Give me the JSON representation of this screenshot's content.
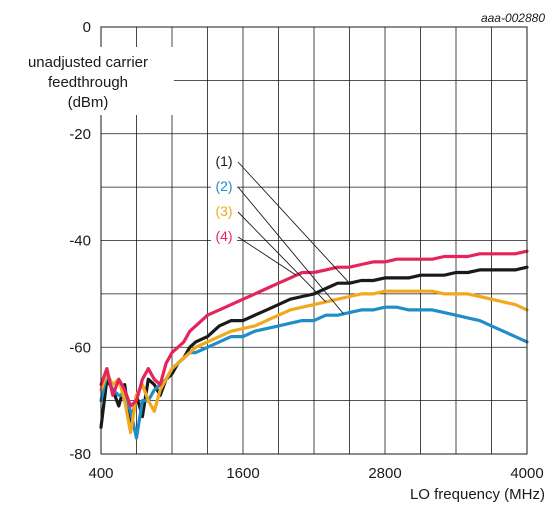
{
  "chart_data": {
    "type": "line",
    "figure_id": "aaa-002880",
    "ylabel_lines": [
      "unadjusted carrier",
      "feedthrough",
      "(dBm)"
    ],
    "xlabel": "LO frequency (MHz)",
    "xlim": [
      400,
      4000
    ],
    "ylim": [
      -80,
      0
    ],
    "x_ticks": [
      400,
      1600,
      2800,
      4000
    ],
    "y_ticks": [
      0,
      -20,
      -40,
      -60,
      -80
    ],
    "grid": true,
    "series": [
      {
        "name": "(1)",
        "color": "#1a1a1a",
        "x": [
          400,
          450,
          500,
          550,
          600,
          650,
          700,
          750,
          800,
          850,
          900,
          950,
          1000,
          1050,
          1100,
          1150,
          1200,
          1300,
          1400,
          1500,
          1600,
          1700,
          1800,
          1900,
          2000,
          2100,
          2200,
          2300,
          2400,
          2500,
          2600,
          2700,
          2800,
          2900,
          3000,
          3100,
          3200,
          3300,
          3400,
          3500,
          3600,
          3700,
          3800,
          3900,
          4000
        ],
        "values": [
          -75,
          -66,
          -68,
          -71,
          -67,
          -75,
          -69,
          -73,
          -66,
          -67,
          -69,
          -66,
          -65,
          -63,
          -62,
          -60,
          -59,
          -58,
          -56,
          -55,
          -55,
          -54,
          -53,
          -52,
          -51,
          -50.5,
          -50,
          -49,
          -48,
          -48,
          -47.5,
          -47.5,
          -47,
          -47,
          -47,
          -46.5,
          -46.5,
          -46.5,
          -46,
          -46,
          -45.5,
          -45.5,
          -45.5,
          -45.5,
          -45
        ]
      },
      {
        "name": "(2)",
        "color": "#1f8ec6",
        "x": [
          400,
          450,
          500,
          550,
          600,
          650,
          700,
          750,
          800,
          850,
          900,
          950,
          1000,
          1050,
          1100,
          1150,
          1200,
          1300,
          1400,
          1500,
          1600,
          1700,
          1800,
          1900,
          2000,
          2100,
          2200,
          2300,
          2400,
          2500,
          2600,
          2700,
          2800,
          2900,
          3000,
          3100,
          3200,
          3300,
          3400,
          3500,
          3600,
          3700,
          3800,
          3900,
          4000
        ],
        "values": [
          -70,
          -65,
          -68,
          -69,
          -69,
          -72,
          -77,
          -70,
          -70,
          -68,
          -67,
          -66,
          -64,
          -63,
          -62,
          -61,
          -61,
          -60,
          -59,
          -58,
          -58,
          -57,
          -56.5,
          -56,
          -55.5,
          -55,
          -55,
          -54,
          -54,
          -53.5,
          -53,
          -53,
          -52.5,
          -52.5,
          -53,
          -53,
          -53,
          -53.5,
          -54,
          -54.5,
          -55,
          -56,
          -57,
          -58,
          -59
        ]
      },
      {
        "name": "(3)",
        "color": "#f2a81d",
        "x": [
          400,
          450,
          500,
          550,
          600,
          650,
          700,
          750,
          800,
          850,
          900,
          950,
          1000,
          1050,
          1100,
          1150,
          1200,
          1300,
          1400,
          1500,
          1600,
          1700,
          1800,
          1900,
          2000,
          2100,
          2200,
          2300,
          2400,
          2500,
          2600,
          2700,
          2800,
          2900,
          3000,
          3100,
          3200,
          3300,
          3400,
          3500,
          3600,
          3700,
          3800,
          3900,
          4000
        ],
        "values": [
          -68,
          -65,
          -67,
          -66,
          -70,
          -76,
          -69,
          -67,
          -70,
          -72,
          -68,
          -66,
          -64,
          -63,
          -62,
          -61,
          -60,
          -59,
          -58,
          -57,
          -56.5,
          -56,
          -55,
          -54,
          -53,
          -52.5,
          -52,
          -51.5,
          -51,
          -50.5,
          -50,
          -50,
          -49.5,
          -49.5,
          -49.5,
          -49.5,
          -49.5,
          -50,
          -50,
          -50,
          -50.5,
          -51,
          -51.5,
          -52,
          -53
        ]
      },
      {
        "name": "(4)",
        "color": "#e6245c",
        "x": [
          400,
          450,
          500,
          550,
          600,
          650,
          700,
          750,
          800,
          850,
          900,
          950,
          1000,
          1050,
          1100,
          1150,
          1200,
          1300,
          1400,
          1500,
          1600,
          1700,
          1800,
          1900,
          2000,
          2100,
          2200,
          2300,
          2400,
          2500,
          2600,
          2700,
          2800,
          2900,
          3000,
          3100,
          3200,
          3300,
          3400,
          3500,
          3600,
          3700,
          3800,
          3900,
          4000
        ],
        "values": [
          -67,
          -64,
          -69,
          -66,
          -68,
          -71,
          -70,
          -66,
          -64,
          -66,
          -67,
          -63,
          -61,
          -60,
          -59,
          -57,
          -56,
          -54,
          -53,
          -52,
          -51,
          -50,
          -49,
          -48,
          -47,
          -46,
          -46,
          -45.5,
          -45,
          -45,
          -44.5,
          -44,
          -44,
          -43.5,
          -43.5,
          -43.5,
          -43.5,
          -43,
          -43,
          -43,
          -42.5,
          -42.5,
          -42.5,
          -42.5,
          -42
        ]
      }
    ]
  }
}
